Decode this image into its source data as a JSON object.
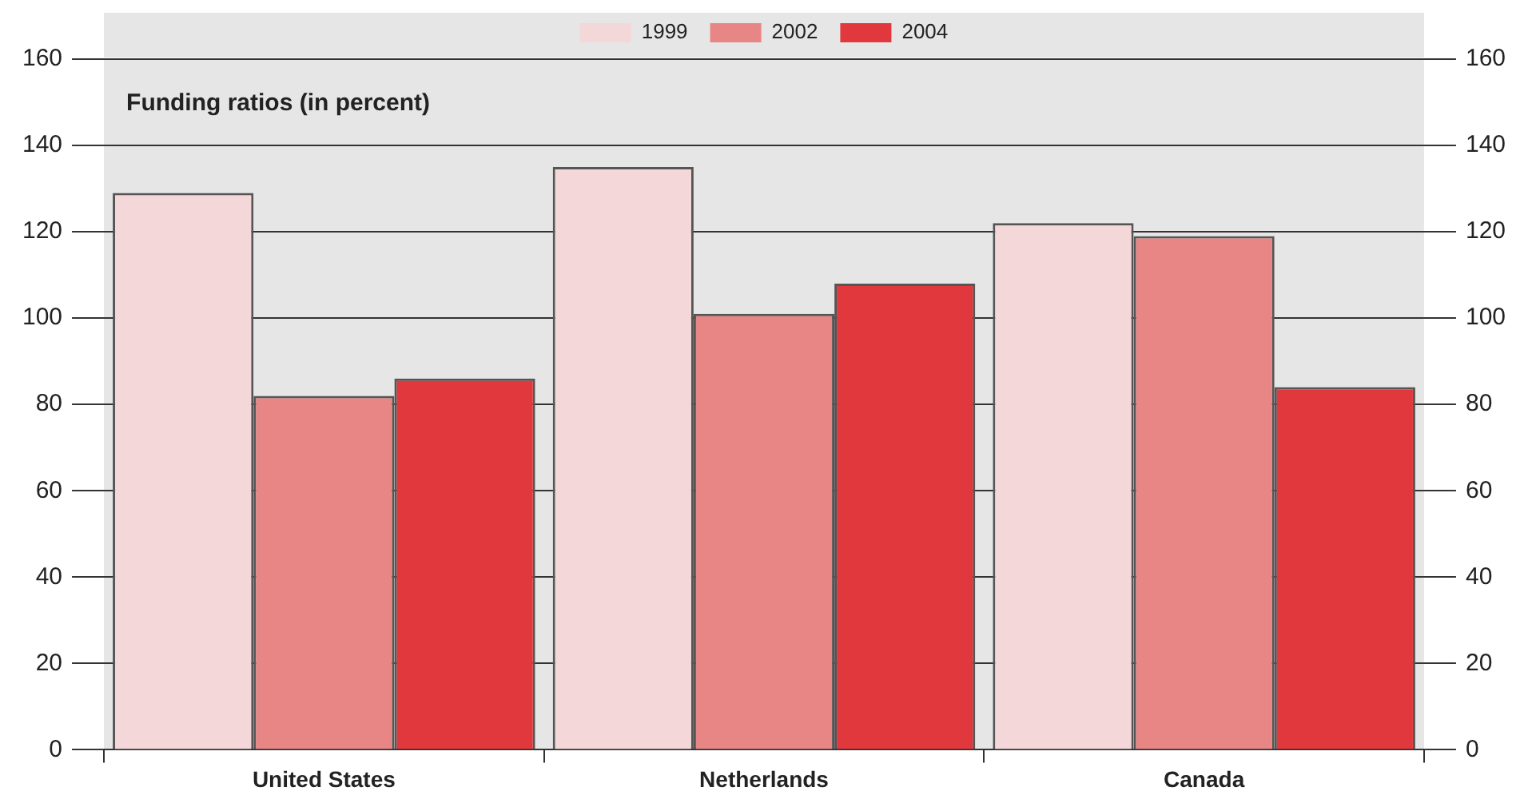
{
  "chart_data": {
    "type": "bar",
    "annotations": [
      "Funding ratios (in percent)"
    ],
    "categories": [
      "United States",
      "Netherlands",
      "Canada"
    ],
    "series": [
      {
        "name": "1999",
        "color": "#f4d7d9",
        "values": [
          129,
          135,
          122
        ]
      },
      {
        "name": "2002",
        "color": "#e88585",
        "values": [
          82,
          101,
          119
        ]
      },
      {
        "name": "2004",
        "color": "#e0383c",
        "values": [
          86,
          108,
          84
        ]
      }
    ],
    "ylim": [
      0,
      160
    ],
    "yticks": [
      0,
      20,
      40,
      60,
      80,
      100,
      120,
      140,
      160
    ],
    "y2lim": [
      0,
      160
    ],
    "y2ticks": [
      0,
      20,
      40,
      60,
      80,
      100,
      120,
      140,
      160
    ],
    "grid": "y",
    "legend": "top"
  }
}
